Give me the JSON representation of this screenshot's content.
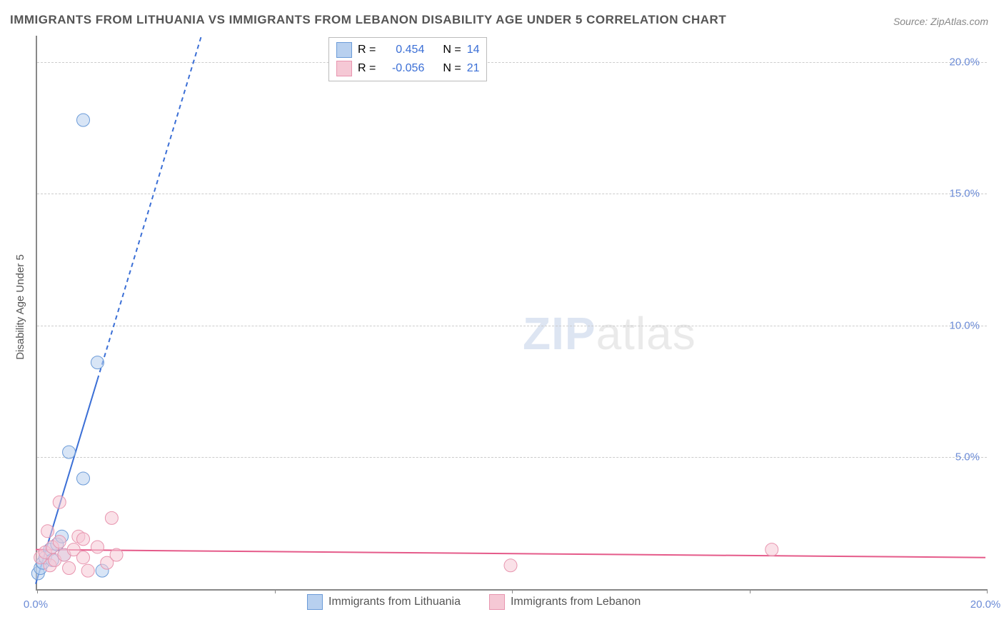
{
  "title": "IMMIGRANTS FROM LITHUANIA VS IMMIGRANTS FROM LEBANON DISABILITY AGE UNDER 5 CORRELATION CHART",
  "source": "Source: ZipAtlas.com",
  "y_axis_label": "Disability Age Under 5",
  "watermark_zip": "ZIP",
  "watermark_atlas": "atlas",
  "chart": {
    "type": "scatter",
    "background_color": "#ffffff",
    "grid_color": "#cccccc",
    "axis_color": "#888888",
    "tick_label_color": "#6b8bd6",
    "text_color": "#555555",
    "xlim": [
      0,
      20
    ],
    "ylim": [
      0,
      21
    ],
    "x_ticks": [
      0,
      5,
      10,
      15,
      20
    ],
    "x_tick_labels": [
      "0.0%",
      "",
      "",
      "",
      "20.0%"
    ],
    "y_ticks": [
      5,
      10,
      15,
      20
    ],
    "y_tick_labels": [
      "5.0%",
      "10.0%",
      "15.0%",
      "20.0%"
    ],
    "marker_radius": 9,
    "marker_opacity": 0.55,
    "trend_line_width": 2,
    "series": [
      {
        "name": "Immigrants from Lithuania",
        "color_fill": "#b8d0ef",
        "color_stroke": "#6b9bd8",
        "r_value": "0.454",
        "n_value": "14",
        "trend": {
          "x1": 0.0,
          "y1": 0.2,
          "x2": 5.0,
          "y2": 30.0,
          "color": "#3b6fd6",
          "dashed_after_x": 1.3
        },
        "points": [
          {
            "x": 0.05,
            "y": 0.6
          },
          {
            "x": 0.1,
            "y": 0.8
          },
          {
            "x": 0.15,
            "y": 1.0
          },
          {
            "x": 0.2,
            "y": 1.2
          },
          {
            "x": 0.3,
            "y": 1.5
          },
          {
            "x": 0.35,
            "y": 1.1
          },
          {
            "x": 0.45,
            "y": 1.7
          },
          {
            "x": 0.55,
            "y": 2.0
          },
          {
            "x": 0.6,
            "y": 1.3
          },
          {
            "x": 0.7,
            "y": 5.2
          },
          {
            "x": 1.0,
            "y": 4.2
          },
          {
            "x": 1.3,
            "y": 8.6
          },
          {
            "x": 1.0,
            "y": 17.8
          },
          {
            "x": 1.4,
            "y": 0.7
          }
        ]
      },
      {
        "name": "Immigrants from Lebanon",
        "color_fill": "#f5c8d5",
        "color_stroke": "#e895af",
        "r_value": "-0.056",
        "n_value": "21",
        "trend": {
          "x1": 0.0,
          "y1": 1.5,
          "x2": 20.0,
          "y2": 1.2,
          "color": "#e55b8a",
          "dashed_after_x": 20
        },
        "points": [
          {
            "x": 0.1,
            "y": 1.2
          },
          {
            "x": 0.2,
            "y": 1.4
          },
          {
            "x": 0.3,
            "y": 0.9
          },
          {
            "x": 0.35,
            "y": 1.6
          },
          {
            "x": 0.4,
            "y": 1.1
          },
          {
            "x": 0.5,
            "y": 1.8
          },
          {
            "x": 0.6,
            "y": 1.3
          },
          {
            "x": 0.7,
            "y": 0.8
          },
          {
            "x": 0.8,
            "y": 1.5
          },
          {
            "x": 0.9,
            "y": 2.0
          },
          {
            "x": 1.0,
            "y": 1.2
          },
          {
            "x": 1.1,
            "y": 0.7
          },
          {
            "x": 1.3,
            "y": 1.6
          },
          {
            "x": 1.5,
            "y": 1.0
          },
          {
            "x": 1.7,
            "y": 1.3
          },
          {
            "x": 0.5,
            "y": 3.3
          },
          {
            "x": 1.6,
            "y": 2.7
          },
          {
            "x": 1.0,
            "y": 1.9
          },
          {
            "x": 10.0,
            "y": 0.9
          },
          {
            "x": 15.5,
            "y": 1.5
          },
          {
            "x": 0.25,
            "y": 2.2
          }
        ]
      }
    ]
  },
  "legend_top": {
    "r_label": "R =",
    "n_label": "N ="
  },
  "legend_bottom": {
    "lithuania": "Immigrants from Lithuania",
    "lebanon": "Immigrants from Lebanon"
  }
}
